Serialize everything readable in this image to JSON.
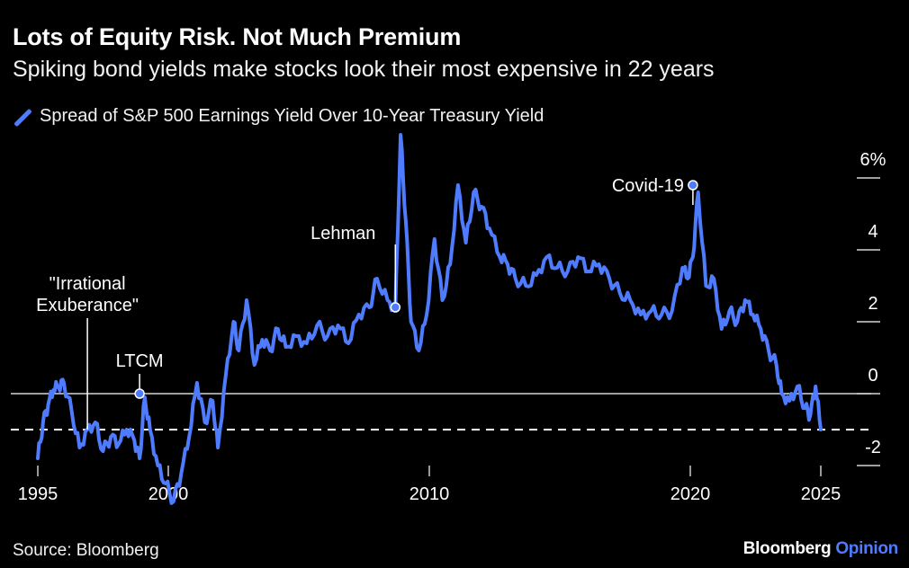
{
  "chart_data": {
    "type": "line",
    "title": "Lots of Equity Risk. Not Much Premium",
    "subtitle": "Spiking bond yields make stocks look their most expensive in 22 years",
    "legend": [
      "Spread of S&P 500 Earnings Yield Over 10-Year Treasury Yield"
    ],
    "xlabel": "",
    "ylabel": "",
    "xlim": [
      1995,
      2025
    ],
    "ylim": [
      -2,
      6
    ],
    "x_ticks": [
      {
        "value": 1995,
        "label": "1995"
      },
      {
        "value": 2000,
        "label": "2000"
      },
      {
        "value": 2010,
        "label": "2010"
      },
      {
        "value": 2020,
        "label": "2020"
      },
      {
        "value": 2025,
        "label": "2025"
      }
    ],
    "y_ticks": [
      {
        "value": 6,
        "label": "6%"
      },
      {
        "value": 4,
        "label": "4"
      },
      {
        "value": 2,
        "label": "2"
      },
      {
        "value": 0,
        "label": "0"
      },
      {
        "value": -2,
        "label": "-2"
      }
    ],
    "reference_lines": [
      {
        "value": 0,
        "style": "solid"
      },
      {
        "value": -1.0,
        "style": "dashed"
      }
    ],
    "series": [
      {
        "name": "Spread of S&P 500 Earnings Yield Over 10-Year Treasury Yield",
        "color": "#4f7cff",
        "x": [
          1995.0,
          1995.2,
          1995.4,
          1995.6,
          1995.8,
          1996.0,
          1996.3,
          1996.6,
          1996.9,
          1997.2,
          1997.5,
          1997.8,
          1998.1,
          1998.4,
          1998.7,
          1998.9,
          1999.1,
          1999.3,
          1999.6,
          1999.9,
          2000.2,
          2000.5,
          2000.8,
          2001.1,
          2001.4,
          2001.7,
          2001.9,
          2002.2,
          2002.5,
          2002.7,
          2003.0,
          2003.3,
          2003.6,
          2003.9,
          2004.2,
          2004.5,
          2004.9,
          2005.3,
          2005.7,
          2006.1,
          2006.5,
          2006.9,
          2007.3,
          2007.7,
          2008.0,
          2008.4,
          2008.7,
          2008.9,
          2009.1,
          2009.3,
          2009.6,
          2009.9,
          2010.2,
          2010.5,
          2010.8,
          2011.1,
          2011.4,
          2011.7,
          2012.0,
          2012.3,
          2012.7,
          2013.0,
          2013.3,
          2013.7,
          2014.1,
          2014.5,
          2014.9,
          2015.3,
          2015.7,
          2016.1,
          2016.5,
          2016.9,
          2017.3,
          2017.7,
          2018.1,
          2018.5,
          2018.9,
          2019.3,
          2019.7,
          2019.9,
          2020.1,
          2020.3,
          2020.6,
          2020.9,
          2021.2,
          2021.5,
          2021.8,
          2022.1,
          2022.4,
          2022.7,
          2023.0,
          2023.3,
          2023.5,
          2023.8,
          2024.1,
          2024.4,
          2024.6,
          2024.8,
          2025.0
        ],
        "y": [
          -1.8,
          -0.8,
          -0.3,
          0.1,
          0.2,
          0.3,
          -0.5,
          -1.5,
          -1.0,
          -0.8,
          -1.6,
          -1.2,
          -1.4,
          -1.0,
          -1.3,
          -1.8,
          -0.1,
          -1.0,
          -2.0,
          -2.5,
          -3.0,
          -2.2,
          -1.2,
          0.3,
          -0.8,
          -0.2,
          -1.5,
          0.5,
          2.0,
          1.2,
          2.6,
          0.8,
          1.5,
          1.2,
          1.8,
          1.3,
          1.6,
          1.4,
          1.9,
          1.6,
          1.9,
          1.4,
          2.2,
          2.4,
          3.2,
          2.6,
          2.4,
          7.2,
          4.8,
          2.0,
          1.2,
          2.2,
          4.3,
          2.6,
          3.6,
          5.8,
          4.2,
          5.6,
          5.2,
          4.6,
          3.8,
          3.6,
          3.2,
          3.0,
          3.3,
          3.8,
          3.5,
          3.4,
          3.8,
          3.4,
          3.6,
          3.2,
          2.8,
          2.6,
          2.2,
          2.3,
          2.2,
          2.3,
          3.5,
          3.2,
          3.8,
          5.6,
          3.0,
          3.2,
          1.8,
          2.3,
          2.0,
          2.6,
          2.2,
          1.8,
          1.2,
          0.8,
          0.0,
          -0.2,
          0.2,
          -0.4,
          -0.6,
          0.2,
          -1.0
        ]
      }
    ],
    "annotations": [
      {
        "label": "\"Irrational",
        "x": 1996.9,
        "y": -1.0
      },
      {
        "label": "Exuberance\"",
        "x": 1996.9,
        "y": -1.0
      },
      {
        "label": "LTCM",
        "x": 1998.9,
        "y": 0.0
      },
      {
        "label": "Lehman",
        "x": 2008.7,
        "y": 2.4
      },
      {
        "label": "Covid-19",
        "x": 2020.1,
        "y": 5.8
      }
    ]
  },
  "footer": {
    "source": "Source: Bloomberg",
    "brand_main": "Bloomberg",
    "brand_accent": "Opinion"
  }
}
